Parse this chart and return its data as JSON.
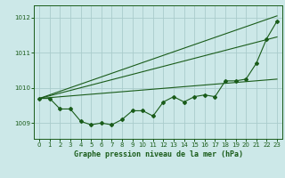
{
  "title": "Graphe pression niveau de la mer (hPa)",
  "bg_color": "#cce8e8",
  "grid_color": "#aacccc",
  "line_color": "#1a5c1a",
  "xlim": [
    -0.5,
    23.5
  ],
  "ylim": [
    1008.55,
    1012.35
  ],
  "yticks": [
    1009,
    1010,
    1011,
    1012
  ],
  "xticks": [
    0,
    1,
    2,
    3,
    4,
    5,
    6,
    7,
    8,
    9,
    10,
    11,
    12,
    13,
    14,
    15,
    16,
    17,
    18,
    19,
    20,
    21,
    22,
    23
  ],
  "series": {
    "line1": {
      "x": [
        0,
        1,
        2,
        3,
        4,
        5,
        6,
        7,
        8,
        9,
        10,
        11,
        12,
        13,
        14,
        15,
        16,
        17,
        18,
        19,
        20,
        21,
        22,
        23
      ],
      "y": [
        1009.7,
        1009.7,
        1009.4,
        1009.4,
        1009.05,
        1008.95,
        1009.0,
        1008.95,
        1009.1,
        1009.35,
        1009.35,
        1009.2,
        1009.6,
        1009.75,
        1009.6,
        1009.75,
        1009.8,
        1009.75,
        1010.2,
        1010.2,
        1010.25,
        1010.7,
        1011.4,
        1011.9
      ]
    },
    "line2": {
      "x": [
        0,
        23
      ],
      "y": [
        1009.7,
        1012.05
      ]
    },
    "line3": {
      "x": [
        0,
        23
      ],
      "y": [
        1009.7,
        1011.45
      ]
    },
    "line4": {
      "x": [
        0,
        23
      ],
      "y": [
        1009.7,
        1010.25
      ]
    }
  },
  "figsize": [
    3.2,
    2.0
  ],
  "dpi": 100,
  "font_size_ticks": 5.0,
  "font_size_label": 6.0
}
